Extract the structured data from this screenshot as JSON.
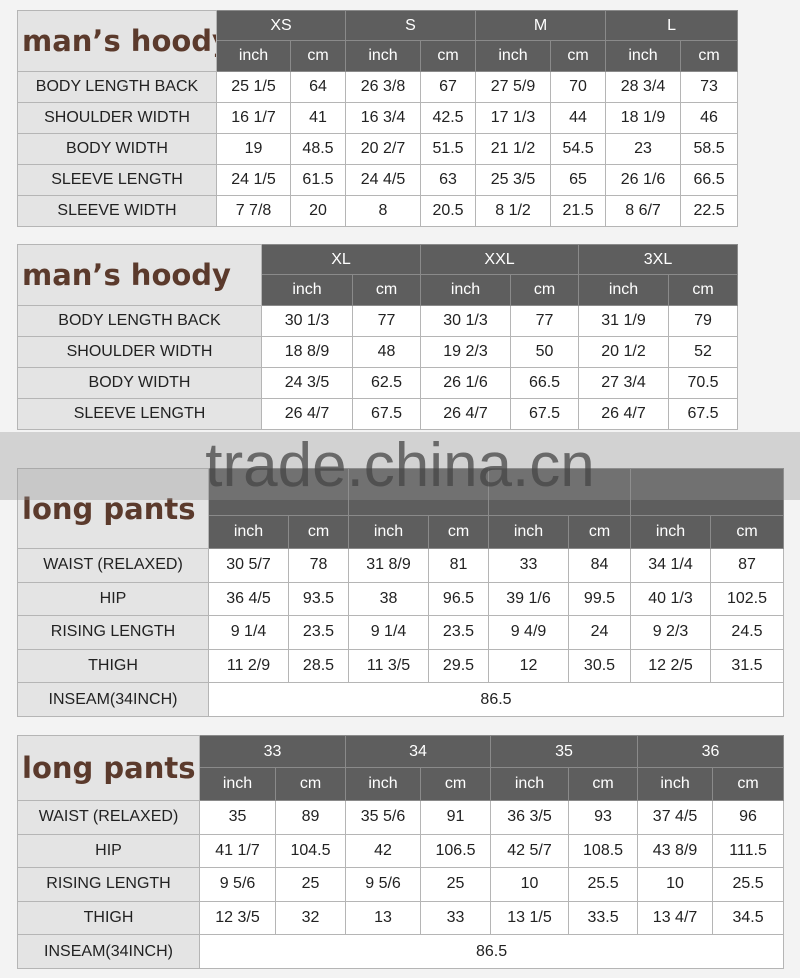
{
  "tables": [
    {
      "title": "man’s hoody",
      "sizes": [
        "XS",
        "S",
        "M",
        "L"
      ],
      "units": [
        "inch",
        "cm",
        "inch",
        "cm",
        "inch",
        "cm",
        "inch",
        "cm"
      ],
      "rows": [
        {
          "label": "BODY LENGTH BACK",
          "cells": [
            "25 1/5",
            "64",
            "26 3/8",
            "67",
            "27 5/9",
            "70",
            "28 3/4",
            "73"
          ]
        },
        {
          "label": "SHOULDER WIDTH",
          "cells": [
            "16 1/7",
            "41",
            "16 3/4",
            "42.5",
            "17 1/3",
            "44",
            "18 1/9",
            "46"
          ]
        },
        {
          "label": "BODY WIDTH",
          "cells": [
            "19",
            "48.5",
            "20 2/7",
            "51.5",
            "21 1/2",
            "54.5",
            "23",
            "58.5"
          ]
        },
        {
          "label": "SLEEVE LENGTH",
          "cells": [
            "24 1/5",
            "61.5",
            "24 4/5",
            "63",
            "25 3/5",
            "65",
            "26 1/6",
            "66.5"
          ]
        },
        {
          "label": "SLEEVE WIDTH",
          "cells": [
            "7 7/8",
            "20",
            "8",
            "20.5",
            "8 1/2",
            "21.5",
            "8 6/7",
            "22.5"
          ]
        }
      ]
    },
    {
      "title": "man’s hoody",
      "sizes": [
        "XL",
        "XXL",
        "3XL"
      ],
      "units": [
        "inch",
        "cm",
        "inch",
        "cm",
        "inch",
        "cm"
      ],
      "rows": [
        {
          "label": "BODY LENGTH BACK",
          "cells": [
            "30 1/3",
            "77",
            "30 1/3",
            "77",
            "31 1/9",
            "79"
          ]
        },
        {
          "label": "SHOULDER WIDTH",
          "cells": [
            "18 8/9",
            "48",
            "19 2/3",
            "50",
            "20 1/2",
            "52"
          ]
        },
        {
          "label": "BODY WIDTH",
          "cells": [
            "24 3/5",
            "62.5",
            "26 1/6",
            "66.5",
            "27 3/4",
            "70.5"
          ]
        },
        {
          "label": "SLEEVE LENGTH",
          "cells": [
            "26 4/7",
            "67.5",
            "26 4/7",
            "67.5",
            "26 4/7",
            "67.5"
          ]
        }
      ]
    },
    {
      "title": "long pants",
      "units": [
        "inch",
        "cm",
        "inch",
        "cm",
        "inch",
        "cm",
        "inch",
        "cm"
      ],
      "rows": [
        {
          "label": "WAIST (RELAXED)",
          "cells": [
            "30 5/7",
            "78",
            "31 8/9",
            "81",
            "33",
            "84",
            "34 1/4",
            "87"
          ]
        },
        {
          "label": "HIP",
          "cells": [
            "36 4/5",
            "93.5",
            "38",
            "96.5",
            "39 1/6",
            "99.5",
            "40 1/3",
            "102.5"
          ]
        },
        {
          "label": "RISING LENGTH",
          "cells": [
            "9 1/4",
            "23.5",
            "9 1/4",
            "23.5",
            "9 4/9",
            "24",
            "9 2/3",
            "24.5"
          ]
        },
        {
          "label": "THIGH",
          "cells": [
            "11 2/9",
            "28.5",
            "11 3/5",
            "29.5",
            "12",
            "30.5",
            "12 2/5",
            "31.5"
          ]
        },
        {
          "label": "INSEAM(34INCH)",
          "cells": [
            "86.5"
          ]
        }
      ]
    },
    {
      "title": "long pants",
      "sizes": [
        "33",
        "34",
        "35",
        "36"
      ],
      "units": [
        "inch",
        "cm",
        "inch",
        "cm",
        "inch",
        "cm",
        "inch",
        "cm"
      ],
      "rows": [
        {
          "label": "WAIST (RELAXED)",
          "cells": [
            "35",
            "89",
            "35 5/6",
            "91",
            "36 3/5",
            "93",
            "37 4/5",
            "96"
          ]
        },
        {
          "label": "HIP",
          "cells": [
            "41 1/7",
            "104.5",
            "42",
            "106.5",
            "42 5/7",
            "108.5",
            "43 8/9",
            "111.5"
          ]
        },
        {
          "label": "RISING LENGTH",
          "cells": [
            "9 5/6",
            "25",
            "9 5/6",
            "25",
            "10",
            "25.5",
            "10",
            "25.5"
          ]
        },
        {
          "label": "THIGH",
          "cells": [
            "12 3/5",
            "32",
            "13",
            "33",
            "13 1/5",
            "33.5",
            "13 4/7",
            "34.5"
          ]
        },
        {
          "label": "INSEAM(34INCH)",
          "cells": [
            "86.5"
          ]
        }
      ]
    }
  ],
  "watermark": "trade.china.cn"
}
